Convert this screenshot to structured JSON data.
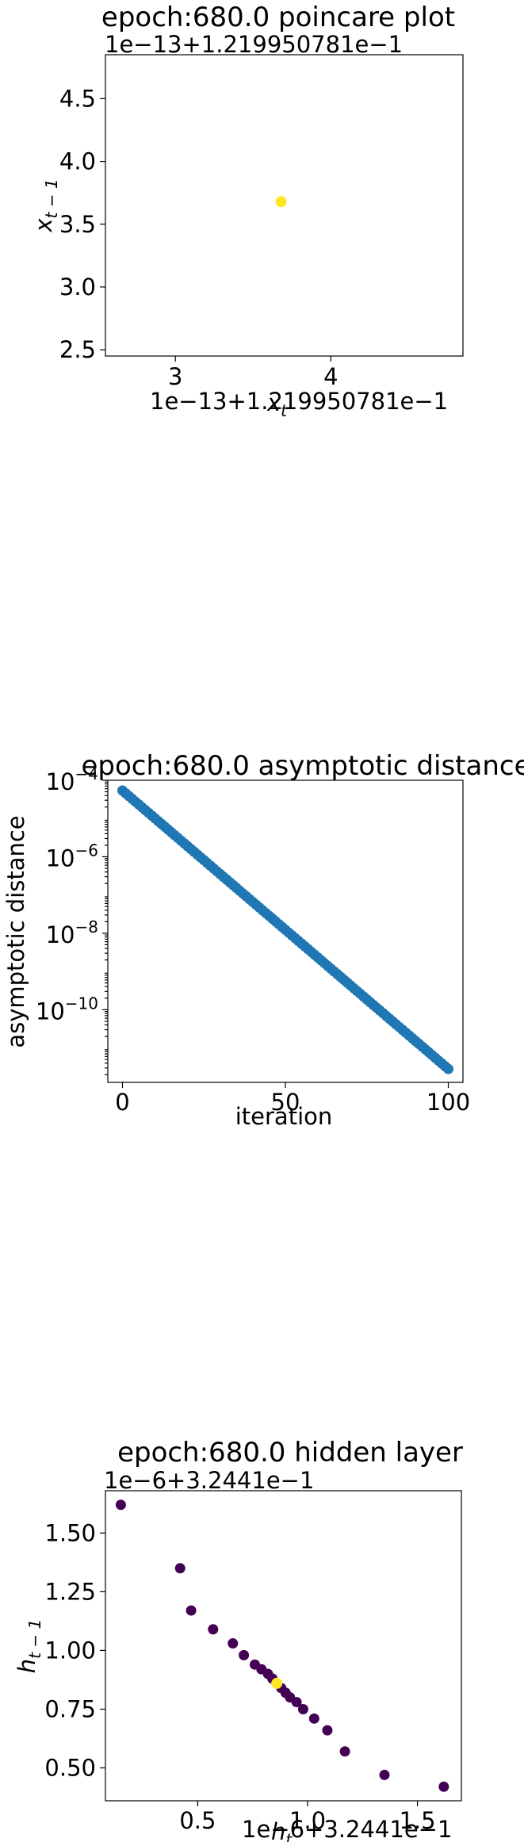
{
  "chart_data": [
    {
      "type": "scatter",
      "title": "epoch:680.0 poincare plot",
      "xlabel": "x_t",
      "ylabel": "x_{t-1}",
      "x_offset_label": "1e−13+1.219950781e−1",
      "y_offset_label": "1e−13+1.219950781e−1",
      "xlim": [
        2.55,
        4.85
      ],
      "ylim": [
        2.45,
        4.85
      ],
      "x_ticks": [
        {
          "value": 3,
          "label": "3"
        },
        {
          "value": 4,
          "label": "4"
        }
      ],
      "y_ticks": [
        {
          "value": 2.5,
          "label": "2.5"
        },
        {
          "value": 3.0,
          "label": "3.0"
        },
        {
          "value": 3.5,
          "label": "3.5"
        },
        {
          "value": 4.0,
          "label": "4.0"
        },
        {
          "value": 4.5,
          "label": "4.5"
        }
      ],
      "points": [
        {
          "x": 3.68,
          "y": 3.68,
          "color": "#fde725"
        }
      ]
    },
    {
      "type": "scatter",
      "title": "epoch:680.0 asymptotic distance",
      "xlabel": "iteration",
      "ylabel": "asymptotic distance",
      "y_scale": "log",
      "color": "#1f77b4",
      "xlim": [
        -4.5,
        104.5
      ],
      "ylim_log10": [
        -11.9,
        -4.0
      ],
      "x_ticks": [
        {
          "value": 0,
          "label": "0"
        },
        {
          "value": 50,
          "label": "50"
        },
        {
          "value": 100,
          "label": "100"
        }
      ],
      "y_ticks": [
        {
          "exp": -4,
          "base": "10",
          "power": "−4"
        },
        {
          "exp": -6,
          "base": "10",
          "power": "−6"
        },
        {
          "exp": -8,
          "base": "10",
          "power": "−8"
        },
        {
          "exp": -10,
          "base": "10",
          "power": "−10"
        }
      ],
      "series_rule": {
        "x_start": 0,
        "x_end": 100,
        "log10_y_start": -4.27,
        "log10_y_end": -11.55
      }
    },
    {
      "type": "scatter",
      "title": "epoch:680.0 hidden layer",
      "xlabel": "h_t",
      "ylabel": "h_{t-1}",
      "x_offset_label": "1e−6+3.2441e−1",
      "y_offset_label": "1e−6+3.2441e−1",
      "xlim": [
        0.08,
        1.7
      ],
      "ylim": [
        0.36,
        1.68
      ],
      "x_ticks": [
        {
          "value": 0.5,
          "label": "0.5"
        },
        {
          "value": 1.0,
          "label": "1.0"
        },
        {
          "value": 1.5,
          "label": "1.5"
        }
      ],
      "y_ticks": [
        {
          "value": 0.5,
          "label": "0.50"
        },
        {
          "value": 0.75,
          "label": "0.75"
        },
        {
          "value": 1.0,
          "label": "1.00"
        },
        {
          "value": 1.25,
          "label": "1.25"
        },
        {
          "value": 1.5,
          "label": "1.50"
        }
      ],
      "point_color": "#440154",
      "highlight_color": "#fde725",
      "points": [
        {
          "x": 0.15,
          "y": 1.62
        },
        {
          "x": 0.42,
          "y": 1.35
        },
        {
          "x": 0.47,
          "y": 1.17
        },
        {
          "x": 0.57,
          "y": 1.09
        },
        {
          "x": 0.66,
          "y": 1.03
        },
        {
          "x": 0.71,
          "y": 0.98
        },
        {
          "x": 0.76,
          "y": 0.94
        },
        {
          "x": 0.79,
          "y": 0.92
        },
        {
          "x": 0.82,
          "y": 0.9
        },
        {
          "x": 0.84,
          "y": 0.88
        },
        {
          "x": 0.86,
          "y": 0.86
        },
        {
          "x": 0.88,
          "y": 0.84
        },
        {
          "x": 0.9,
          "y": 0.82
        },
        {
          "x": 0.92,
          "y": 0.8
        },
        {
          "x": 0.95,
          "y": 0.78
        },
        {
          "x": 0.98,
          "y": 0.75
        },
        {
          "x": 1.03,
          "y": 0.71
        },
        {
          "x": 1.09,
          "y": 0.66
        },
        {
          "x": 1.17,
          "y": 0.57
        },
        {
          "x": 1.35,
          "y": 0.47
        },
        {
          "x": 1.62,
          "y": 0.42
        }
      ],
      "highlight_point": {
        "x": 0.86,
        "y": 0.86
      }
    }
  ]
}
